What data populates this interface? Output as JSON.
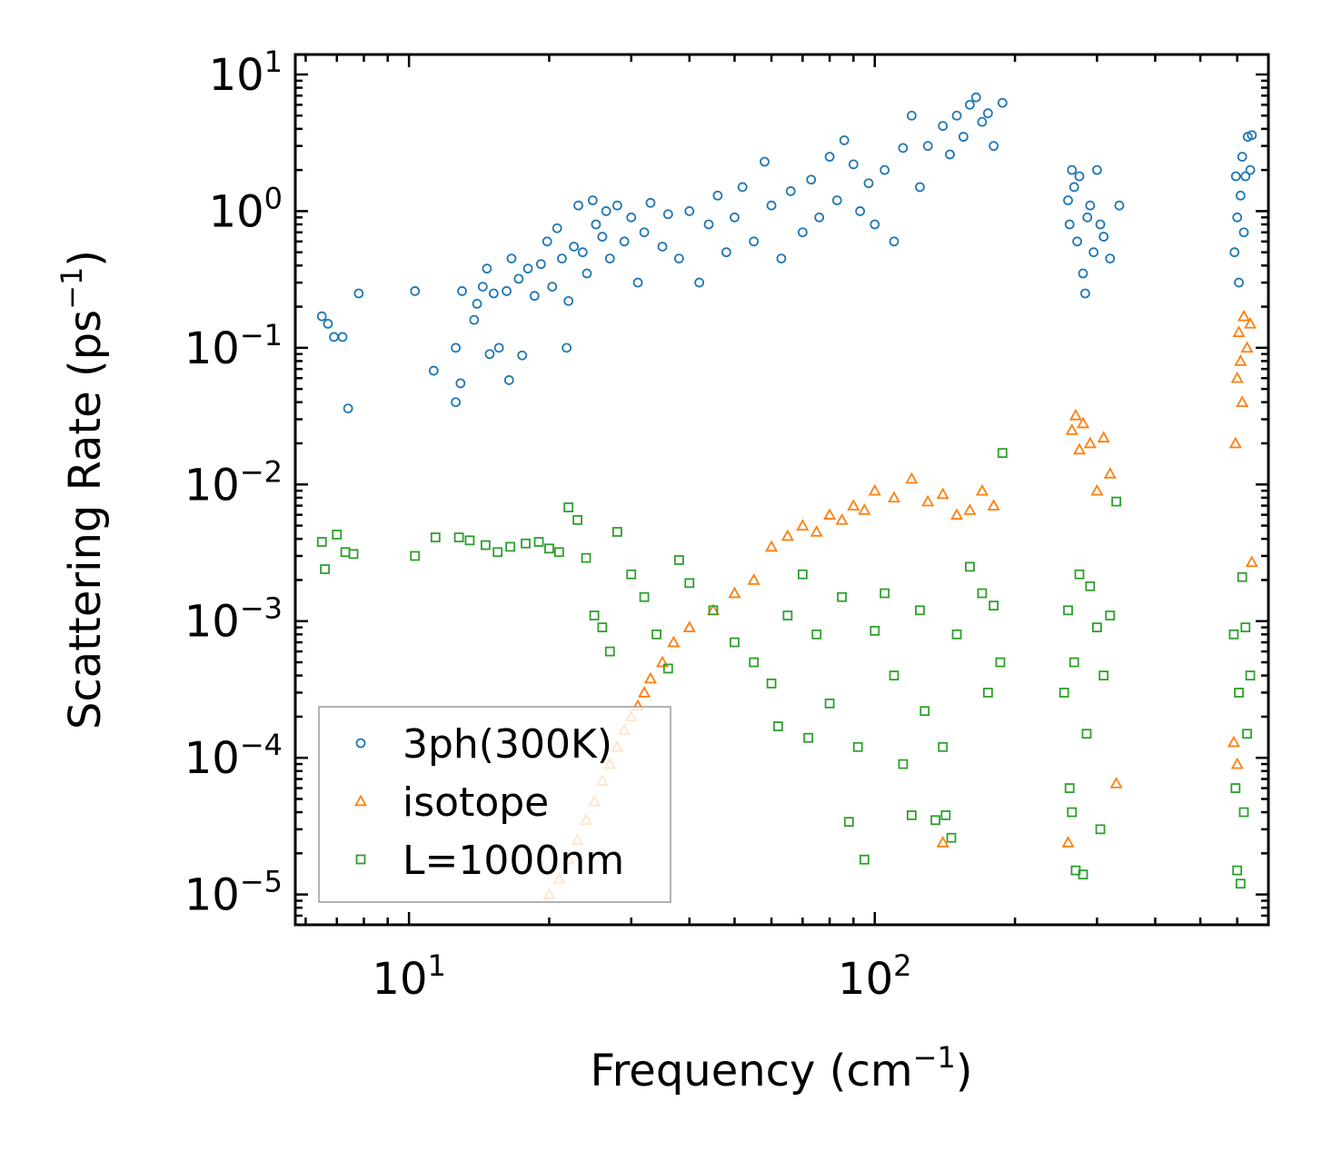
{
  "chart_data": {
    "type": "scatter",
    "title": "",
    "xlabel": "Frequency (cm",
    "xlabel_sup": "−1",
    "xlabel_end": ")",
    "ylabel": "Scattering Rate (ps",
    "ylabel_sup": "−1",
    "ylabel_end": ")",
    "xscale": "log",
    "yscale": "log",
    "xlim": [
      5.7,
      700
    ],
    "ylim": [
      6e-06,
      14
    ],
    "x_ticks": [
      {
        "value": 10,
        "base": "10",
        "exp": "1"
      },
      {
        "value": 100,
        "base": "10",
        "exp": "2"
      }
    ],
    "y_ticks": [
      {
        "value": 10,
        "base": "10",
        "exp": "1"
      },
      {
        "value": 1,
        "base": "10",
        "exp": "0"
      },
      {
        "value": 0.1,
        "base": "10",
        "exp": "−1"
      },
      {
        "value": 0.01,
        "base": "10",
        "exp": "−2"
      },
      {
        "value": 0.001,
        "base": "10",
        "exp": "−3"
      },
      {
        "value": 0.0001,
        "base": "10",
        "exp": "−4"
      },
      {
        "value": 1e-05,
        "base": "10",
        "exp": "−5"
      }
    ],
    "legend": {
      "location": "lower-left"
    },
    "series": [
      {
        "name": "3ph(300K)",
        "marker": "circle",
        "color": "#1f77b4",
        "points": [
          [
            6.5,
            0.17
          ],
          [
            6.7,
            0.15
          ],
          [
            6.9,
            0.12
          ],
          [
            7.2,
            0.12
          ],
          [
            7.4,
            0.036
          ],
          [
            7.8,
            0.25
          ],
          [
            10.3,
            0.26
          ],
          [
            11.3,
            0.068
          ],
          [
            12.6,
            0.1
          ],
          [
            12.6,
            0.04
          ],
          [
            12.9,
            0.055
          ],
          [
            13.0,
            0.26
          ],
          [
            13.8,
            0.16
          ],
          [
            14.0,
            0.21
          ],
          [
            14.4,
            0.28
          ],
          [
            14.7,
            0.38
          ],
          [
            14.9,
            0.09
          ],
          [
            15.2,
            0.25
          ],
          [
            15.6,
            0.1
          ],
          [
            16.2,
            0.26
          ],
          [
            16.4,
            0.058
          ],
          [
            16.6,
            0.45
          ],
          [
            17.2,
            0.32
          ],
          [
            17.5,
            0.088
          ],
          [
            18.0,
            0.38
          ],
          [
            18.6,
            0.24
          ],
          [
            19.2,
            0.41
          ],
          [
            19.8,
            0.6
          ],
          [
            20.3,
            0.28
          ],
          [
            20.8,
            0.75
          ],
          [
            21.3,
            0.45
          ],
          [
            21.8,
            0.1
          ],
          [
            22.0,
            0.22
          ],
          [
            22.6,
            0.55
          ],
          [
            23.1,
            1.1
          ],
          [
            23.6,
            0.5
          ],
          [
            24.1,
            0.35
          ],
          [
            24.8,
            1.2
          ],
          [
            25.2,
            0.8
          ],
          [
            26.0,
            0.65
          ],
          [
            26.5,
            1.0
          ],
          [
            27.0,
            0.45
          ],
          [
            28.0,
            1.1
          ],
          [
            29.0,
            0.6
          ],
          [
            30.0,
            0.9
          ],
          [
            31.0,
            0.3
          ],
          [
            32.0,
            0.7
          ],
          [
            33.0,
            1.15
          ],
          [
            35.0,
            0.55
          ],
          [
            36.0,
            0.95
          ],
          [
            38.0,
            0.45
          ],
          [
            40.0,
            1.0
          ],
          [
            42.0,
            0.3
          ],
          [
            44.0,
            0.8
          ],
          [
            46.0,
            1.3
          ],
          [
            48.0,
            0.5
          ],
          [
            50.0,
            0.9
          ],
          [
            52.0,
            1.5
          ],
          [
            55.0,
            0.6
          ],
          [
            58.0,
            2.3
          ],
          [
            60.0,
            1.1
          ],
          [
            63.0,
            0.45
          ],
          [
            66.0,
            1.4
          ],
          [
            70.0,
            0.7
          ],
          [
            73.0,
            1.7
          ],
          [
            76.0,
            0.9
          ],
          [
            80.0,
            2.5
          ],
          [
            83.0,
            1.2
          ],
          [
            86.0,
            3.3
          ],
          [
            90.0,
            2.2
          ],
          [
            93.0,
            1.0
          ],
          [
            97.0,
            1.6
          ],
          [
            100.0,
            0.8
          ],
          [
            105.0,
            2.0
          ],
          [
            110.0,
            0.6
          ],
          [
            115.0,
            2.9
          ],
          [
            120.0,
            5.0
          ],
          [
            125.0,
            1.5
          ],
          [
            130.0,
            3.0
          ],
          [
            140.0,
            4.2
          ],
          [
            145.0,
            2.6
          ],
          [
            150.0,
            5.0
          ],
          [
            155.0,
            3.5
          ],
          [
            160.0,
            6.0
          ],
          [
            165.0,
            6.8
          ],
          [
            170.0,
            4.5
          ],
          [
            175.0,
            5.2
          ],
          [
            180.0,
            3.0
          ],
          [
            188.0,
            6.2
          ],
          [
            260.0,
            1.2
          ],
          [
            262.0,
            0.8
          ],
          [
            265.0,
            2.0
          ],
          [
            268.0,
            1.5
          ],
          [
            272.0,
            0.6
          ],
          [
            275.0,
            1.8
          ],
          [
            280.0,
            0.35
          ],
          [
            283.0,
            0.25
          ],
          [
            286.0,
            0.9
          ],
          [
            290.0,
            1.1
          ],
          [
            295.0,
            0.5
          ],
          [
            300.0,
            2.0
          ],
          [
            305.0,
            0.8
          ],
          [
            310.0,
            0.65
          ],
          [
            320.0,
            0.45
          ],
          [
            335.0,
            1.1
          ],
          [
            592.0,
            0.5
          ],
          [
            596.0,
            1.8
          ],
          [
            600.0,
            0.9
          ],
          [
            605.0,
            0.3
          ],
          [
            610.0,
            1.3
          ],
          [
            615.0,
            2.5
          ],
          [
            620.0,
            0.7
          ],
          [
            625.0,
            1.8
          ],
          [
            632.0,
            3.5
          ],
          [
            640.0,
            2.0
          ],
          [
            645.0,
            3.6
          ]
        ]
      },
      {
        "name": "isotope",
        "marker": "triangle",
        "color": "#ff7f0e",
        "points": [
          [
            20.0,
            1e-05
          ],
          [
            21.0,
            1.3e-05
          ],
          [
            22.0,
            1.8e-05
          ],
          [
            23.0,
            2.5e-05
          ],
          [
            24.0,
            3.5e-05
          ],
          [
            25.0,
            4.8e-05
          ],
          [
            26.0,
            6.8e-05
          ],
          [
            27.0,
            9e-05
          ],
          [
            28.0,
            0.00012
          ],
          [
            29.0,
            0.00016
          ],
          [
            30.0,
            0.0002
          ],
          [
            31.0,
            0.00024
          ],
          [
            32.0,
            0.0003
          ],
          [
            33.0,
            0.00038
          ],
          [
            35.0,
            0.0005
          ],
          [
            37.0,
            0.0007
          ],
          [
            40.0,
            0.0009
          ],
          [
            45.0,
            0.0012
          ],
          [
            50.0,
            0.0016
          ],
          [
            55.0,
            0.002
          ],
          [
            60.0,
            0.0035
          ],
          [
            65.0,
            0.0042
          ],
          [
            70.0,
            0.005
          ],
          [
            75.0,
            0.0045
          ],
          [
            80.0,
            0.006
          ],
          [
            85.0,
            0.0055
          ],
          [
            90.0,
            0.007
          ],
          [
            95.0,
            0.0065
          ],
          [
            100.0,
            0.009
          ],
          [
            110.0,
            0.008
          ],
          [
            120.0,
            0.011
          ],
          [
            130.0,
            0.0075
          ],
          [
            140.0,
            0.0085
          ],
          [
            150.0,
            0.006
          ],
          [
            160.0,
            0.0065
          ],
          [
            170.0,
            0.009
          ],
          [
            180.0,
            0.007
          ],
          [
            140.0,
            2.4e-05
          ],
          [
            260.0,
            2.4e-05
          ],
          [
            265.0,
            0.025
          ],
          [
            270.0,
            0.032
          ],
          [
            275.0,
            0.018
          ],
          [
            280.0,
            0.028
          ],
          [
            290.0,
            0.02
          ],
          [
            300.0,
            0.009
          ],
          [
            310.0,
            0.022
          ],
          [
            320.0,
            0.012
          ],
          [
            330.0,
            6.5e-05
          ],
          [
            590.0,
            0.00013
          ],
          [
            595.0,
            0.02
          ],
          [
            600.0,
            0.06
          ],
          [
            605.0,
            0.13
          ],
          [
            610.0,
            0.08
          ],
          [
            615.0,
            0.04
          ],
          [
            620.0,
            0.17
          ],
          [
            630.0,
            0.1
          ],
          [
            640.0,
            0.15
          ],
          [
            645.0,
            0.0027
          ],
          [
            600.0,
            9e-05
          ]
        ]
      },
      {
        "name": "L=1000nm",
        "marker": "square",
        "color": "#2ca02c",
        "points": [
          [
            6.5,
            0.0038
          ],
          [
            6.6,
            0.0024
          ],
          [
            7.0,
            0.0043
          ],
          [
            7.3,
            0.0032
          ],
          [
            7.6,
            0.0031
          ],
          [
            10.3,
            0.003
          ],
          [
            11.4,
            0.0041
          ],
          [
            12.8,
            0.0041
          ],
          [
            13.5,
            0.0039
          ],
          [
            14.6,
            0.0036
          ],
          [
            15.5,
            0.0032
          ],
          [
            16.5,
            0.0035
          ],
          [
            17.8,
            0.0037
          ],
          [
            19.0,
            0.0038
          ],
          [
            20.0,
            0.0034
          ],
          [
            21.0,
            0.0032
          ],
          [
            22.0,
            0.0068
          ],
          [
            23.0,
            0.0055
          ],
          [
            24.0,
            0.0029
          ],
          [
            25.0,
            0.0011
          ],
          [
            26.0,
            0.0009
          ],
          [
            27.0,
            0.0006
          ],
          [
            28.0,
            0.0045
          ],
          [
            30.0,
            0.0022
          ],
          [
            32.0,
            0.0015
          ],
          [
            34.0,
            0.0008
          ],
          [
            36.0,
            0.00045
          ],
          [
            38.0,
            0.0028
          ],
          [
            40.0,
            0.0019
          ],
          [
            45.0,
            0.0012
          ],
          [
            50.0,
            0.0007
          ],
          [
            55.0,
            0.0005
          ],
          [
            60.0,
            0.00035
          ],
          [
            62.0,
            0.00017
          ],
          [
            65.0,
            0.0011
          ],
          [
            70.0,
            0.0022
          ],
          [
            72.0,
            0.00014
          ],
          [
            75.0,
            0.0008
          ],
          [
            80.0,
            0.00025
          ],
          [
            85.0,
            0.0015
          ],
          [
            88.0,
            3.4e-05
          ],
          [
            92.0,
            0.00012
          ],
          [
            95.0,
            1.8e-05
          ],
          [
            100.0,
            0.00085
          ],
          [
            105.0,
            0.0016
          ],
          [
            110.0,
            0.0004
          ],
          [
            115.0,
            9e-05
          ],
          [
            120.0,
            3.8e-05
          ],
          [
            125.0,
            0.0012
          ],
          [
            128.0,
            0.00022
          ],
          [
            135.0,
            3.5e-05
          ],
          [
            140.0,
            0.00012
          ],
          [
            142.0,
            3.8e-05
          ],
          [
            146.0,
            2.6e-05
          ],
          [
            150.0,
            0.0008
          ],
          [
            160.0,
            0.0025
          ],
          [
            170.0,
            0.0016
          ],
          [
            175.0,
            0.0003
          ],
          [
            180.0,
            0.0013
          ],
          [
            186.0,
            0.0005
          ],
          [
            188.0,
            0.017
          ],
          [
            255.0,
            0.0003
          ],
          [
            260.0,
            0.0012
          ],
          [
            262.0,
            6e-05
          ],
          [
            265.0,
            4e-05
          ],
          [
            268.0,
            0.0005
          ],
          [
            270.0,
            1.5e-05
          ],
          [
            275.0,
            0.0022
          ],
          [
            280.0,
            1.4e-05
          ],
          [
            285.0,
            0.00015
          ],
          [
            290.0,
            0.0018
          ],
          [
            300.0,
            0.0009
          ],
          [
            305.0,
            3e-05
          ],
          [
            310.0,
            0.0004
          ],
          [
            320.0,
            0.0011
          ],
          [
            330.0,
            0.0075
          ],
          [
            590.0,
            0.0008
          ],
          [
            595.0,
            6e-05
          ],
          [
            600.0,
            1.5e-05
          ],
          [
            605.0,
            0.0003
          ],
          [
            610.0,
            1.2e-05
          ],
          [
            615.0,
            0.0021
          ],
          [
            620.0,
            4e-05
          ],
          [
            625.0,
            0.0009
          ],
          [
            630.0,
            0.00015
          ],
          [
            640.0,
            0.0004
          ]
        ]
      }
    ]
  }
}
